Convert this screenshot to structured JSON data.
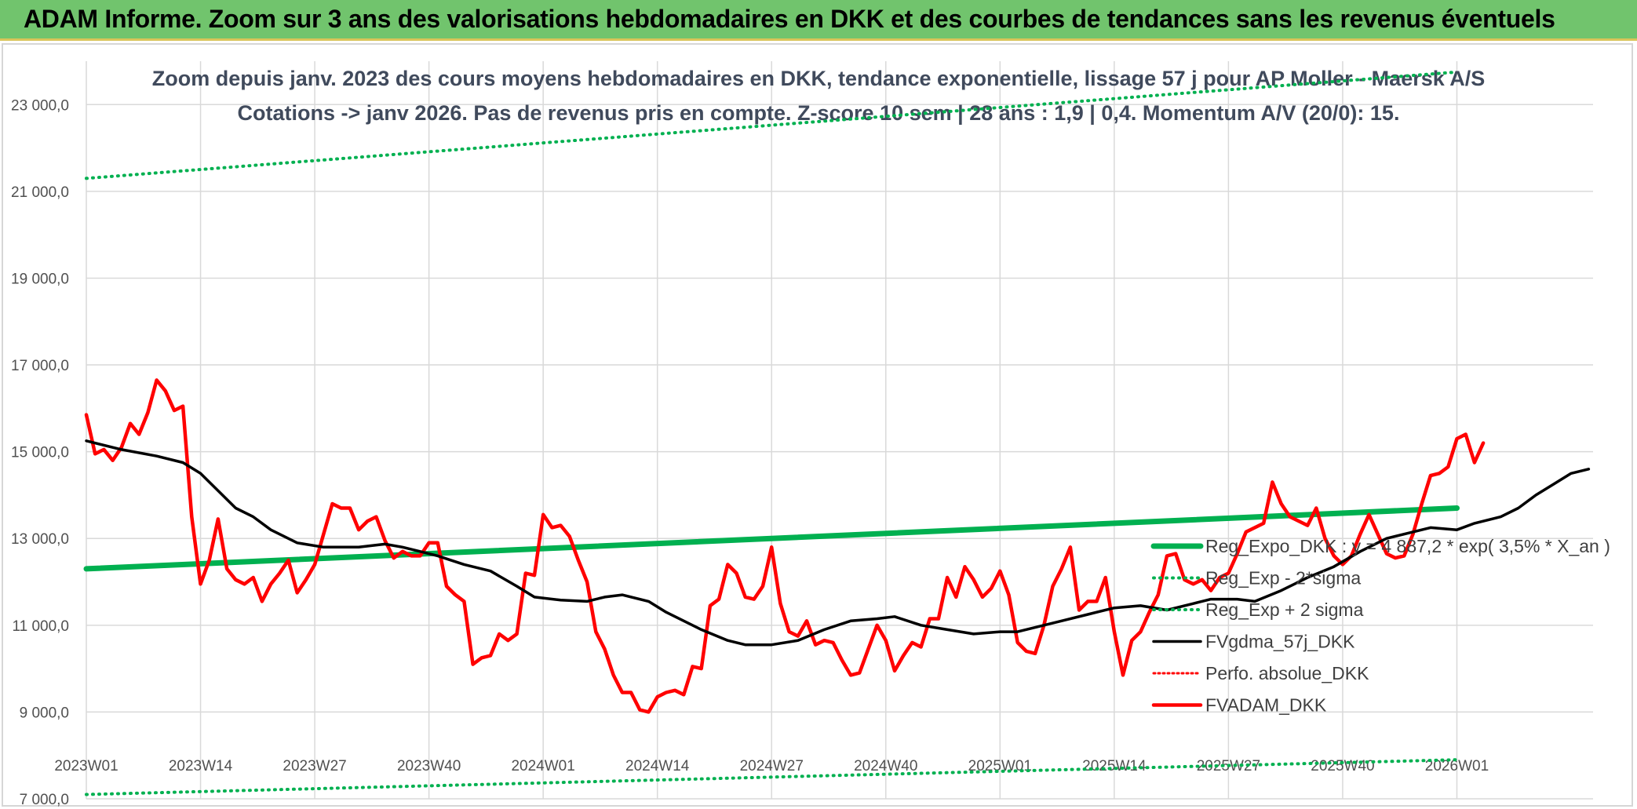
{
  "banner": {
    "title": "ADAM Informe. Zoom sur 3 ans des valorisations hebdomadaires en DKK et des courbes de tendances sans les revenus éventuels"
  },
  "chart_data": {
    "type": "line",
    "title": "Zoom depuis janv. 2023 des cours moyens hebdomadaires en DKK, tendance exponentielle, lissage 57 j pour AP Moller - Maersk A/S",
    "subtitle": "Cotations -> janv 2026. Pas de revenus pris en compte. Z-score 10 sem | 28 ans : 1,9 | 0,4. Momentum A/V (20/0): 15.",
    "x_tick_labels": [
      "2023W01",
      "2023W14",
      "2023W27",
      "2023W40",
      "2024W01",
      "2024W14",
      "2024W27",
      "2024W40",
      "2025W01",
      "2025W14",
      "2025W27",
      "2025W40",
      "2026W01"
    ],
    "y_tick_labels": [
      "7 000,0",
      "9 000,0",
      "11 000,0",
      "13 000,0",
      "15 000,0",
      "17 000,0",
      "19 000,0",
      "21 000,0",
      "23 000,0"
    ],
    "ylim": [
      7000,
      24000
    ],
    "grid": true,
    "legend_position": "right",
    "colors": {
      "reg_exp": "#00b050",
      "reg_bands": "#00b050",
      "fvgdma": "#000000",
      "perfo": "#ff0000",
      "fvadam": "#ff0000"
    },
    "series": [
      {
        "name": "Reg_Expo_DKK : y = 4 887,2 * exp( 3,5% *  X_an )",
        "style": "thick-solid",
        "values": [
          [
            0,
            12300
          ],
          [
            156,
            13700
          ]
        ]
      },
      {
        "name": "Reg_Exp - 2*sigma",
        "style": "dotted",
        "values": [
          [
            0,
            7100
          ],
          [
            156,
            7900
          ]
        ]
      },
      {
        "name": "Reg_Exp + 2 sigma",
        "style": "dotted",
        "values": [
          [
            0,
            21300
          ],
          [
            156,
            23750
          ]
        ]
      },
      {
        "name": "FVgdma_57j_DKK",
        "style": "solid",
        "values": [
          [
            0,
            15250
          ],
          [
            4,
            15050
          ],
          [
            8,
            14900
          ],
          [
            11,
            14750
          ],
          [
            13,
            14500
          ],
          [
            15,
            14100
          ],
          [
            17,
            13700
          ],
          [
            19,
            13500
          ],
          [
            21,
            13200
          ],
          [
            24,
            12900
          ],
          [
            27,
            12800
          ],
          [
            31,
            12800
          ],
          [
            34,
            12870
          ],
          [
            36,
            12800
          ],
          [
            38,
            12700
          ],
          [
            40,
            12600
          ],
          [
            43,
            12400
          ],
          [
            46,
            12250
          ],
          [
            49,
            11900
          ],
          [
            51,
            11650
          ],
          [
            54,
            11580
          ],
          [
            57,
            11550
          ],
          [
            59,
            11650
          ],
          [
            61,
            11700
          ],
          [
            64,
            11550
          ],
          [
            66,
            11300
          ],
          [
            70,
            10900
          ],
          [
            73,
            10650
          ],
          [
            75,
            10550
          ],
          [
            78,
            10550
          ],
          [
            81,
            10650
          ],
          [
            84,
            10900
          ],
          [
            87,
            11100
          ],
          [
            90,
            11150
          ],
          [
            92,
            11200
          ],
          [
            95,
            11000
          ],
          [
            98,
            10900
          ],
          [
            101,
            10800
          ],
          [
            104,
            10850
          ],
          [
            106,
            10850
          ],
          [
            109,
            11000
          ],
          [
            111,
            11100
          ],
          [
            114,
            11250
          ],
          [
            117,
            11400
          ],
          [
            120,
            11450
          ],
          [
            123,
            11350
          ],
          [
            126,
            11500
          ],
          [
            128,
            11600
          ],
          [
            131,
            11600
          ],
          [
            133,
            11550
          ],
          [
            136,
            11800
          ],
          [
            139,
            12100
          ],
          [
            142,
            12350
          ],
          [
            145,
            12700
          ],
          [
            148,
            13000
          ],
          [
            151,
            13150
          ],
          [
            153,
            13250
          ],
          [
            156,
            13200
          ],
          [
            158,
            13350
          ],
          [
            161,
            13500
          ],
          [
            163,
            13700
          ],
          [
            165,
            14000
          ],
          [
            167,
            14250
          ],
          [
            169,
            14500
          ],
          [
            171,
            14600
          ]
        ]
      },
      {
        "name": "Perfo. absolue_DKK",
        "style": "dotted",
        "values": []
      },
      {
        "name": "FVADAM_DKK",
        "style": "thick-solid",
        "values": [
          [
            0,
            15850
          ],
          [
            1,
            14950
          ],
          [
            2,
            15050
          ],
          [
            3,
            14800
          ],
          [
            4,
            15100
          ],
          [
            5,
            15650
          ],
          [
            6,
            15400
          ],
          [
            7,
            15900
          ],
          [
            8,
            16650
          ],
          [
            9,
            16400
          ],
          [
            10,
            15950
          ],
          [
            11,
            16050
          ],
          [
            12,
            13500
          ],
          [
            13,
            11950
          ],
          [
            14,
            12500
          ],
          [
            15,
            13450
          ],
          [
            16,
            12300
          ],
          [
            17,
            12050
          ],
          [
            18,
            11950
          ],
          [
            19,
            12100
          ],
          [
            20,
            11550
          ],
          [
            21,
            11950
          ],
          [
            22,
            12200
          ],
          [
            23,
            12500
          ],
          [
            24,
            11750
          ],
          [
            25,
            12050
          ],
          [
            26,
            12400
          ],
          [
            27,
            13100
          ],
          [
            28,
            13800
          ],
          [
            29,
            13700
          ],
          [
            30,
            13700
          ],
          [
            31,
            13200
          ],
          [
            32,
            13400
          ],
          [
            33,
            13500
          ],
          [
            34,
            12950
          ],
          [
            35,
            12550
          ],
          [
            36,
            12700
          ],
          [
            37,
            12600
          ],
          [
            38,
            12600
          ],
          [
            39,
            12900
          ],
          [
            40,
            12900
          ],
          [
            41,
            11900
          ],
          [
            42,
            11700
          ],
          [
            43,
            11550
          ],
          [
            44,
            10100
          ],
          [
            45,
            10250
          ],
          [
            46,
            10300
          ],
          [
            47,
            10800
          ],
          [
            48,
            10650
          ],
          [
            49,
            10800
          ],
          [
            50,
            12200
          ],
          [
            51,
            12150
          ],
          [
            52,
            13550
          ],
          [
            53,
            13250
          ],
          [
            54,
            13300
          ],
          [
            55,
            13050
          ],
          [
            56,
            12500
          ],
          [
            57,
            12000
          ],
          [
            58,
            10850
          ],
          [
            59,
            10450
          ],
          [
            60,
            9850
          ],
          [
            61,
            9450
          ],
          [
            62,
            9450
          ],
          [
            63,
            9050
          ],
          [
            64,
            9000
          ],
          [
            65,
            9350
          ],
          [
            66,
            9450
          ],
          [
            67,
            9500
          ],
          [
            68,
            9400
          ],
          [
            69,
            10050
          ],
          [
            70,
            10000
          ],
          [
            71,
            11450
          ],
          [
            72,
            11600
          ],
          [
            73,
            12400
          ],
          [
            74,
            12200
          ],
          [
            75,
            11650
          ],
          [
            76,
            11600
          ],
          [
            77,
            11900
          ],
          [
            78,
            12800
          ],
          [
            79,
            11500
          ],
          [
            80,
            10850
          ],
          [
            81,
            10750
          ],
          [
            82,
            11100
          ],
          [
            83,
            10550
          ],
          [
            84,
            10650
          ],
          [
            85,
            10600
          ],
          [
            86,
            10200
          ],
          [
            87,
            9850
          ],
          [
            88,
            9900
          ],
          [
            89,
            10450
          ],
          [
            90,
            11000
          ],
          [
            91,
            10650
          ],
          [
            92,
            9950
          ],
          [
            93,
            10300
          ],
          [
            94,
            10600
          ],
          [
            95,
            10500
          ],
          [
            96,
            11150
          ],
          [
            97,
            11150
          ],
          [
            98,
            12100
          ],
          [
            99,
            11650
          ],
          [
            100,
            12350
          ],
          [
            101,
            12050
          ],
          [
            102,
            11650
          ],
          [
            103,
            11850
          ],
          [
            104,
            12250
          ],
          [
            105,
            11700
          ],
          [
            106,
            10600
          ],
          [
            107,
            10400
          ],
          [
            108,
            10350
          ],
          [
            109,
            11000
          ],
          [
            110,
            11900
          ],
          [
            111,
            12300
          ],
          [
            112,
            12800
          ],
          [
            113,
            11350
          ],
          [
            114,
            11550
          ],
          [
            115,
            11550
          ],
          [
            116,
            12100
          ],
          [
            117,
            10850
          ],
          [
            118,
            9850
          ],
          [
            119,
            10650
          ],
          [
            120,
            10850
          ],
          [
            121,
            11300
          ],
          [
            122,
            11700
          ],
          [
            123,
            12600
          ],
          [
            124,
            12650
          ],
          [
            125,
            12050
          ],
          [
            126,
            11950
          ],
          [
            127,
            12050
          ],
          [
            128,
            11800
          ],
          [
            129,
            12100
          ],
          [
            130,
            12200
          ],
          [
            131,
            12650
          ],
          [
            132,
            13150
          ],
          [
            133,
            13250
          ],
          [
            134,
            13350
          ],
          [
            135,
            14300
          ],
          [
            136,
            13800
          ],
          [
            137,
            13500
          ],
          [
            138,
            13400
          ],
          [
            139,
            13300
          ],
          [
            140,
            13700
          ],
          [
            141,
            13000
          ],
          [
            142,
            12600
          ],
          [
            143,
            12400
          ],
          [
            144,
            12600
          ],
          [
            145,
            13100
          ],
          [
            146,
            13550
          ],
          [
            147,
            13100
          ],
          [
            148,
            12650
          ],
          [
            149,
            12550
          ],
          [
            150,
            12600
          ],
          [
            151,
            13100
          ],
          [
            152,
            13800
          ],
          [
            153,
            14450
          ],
          [
            154,
            14500
          ],
          [
            155,
            14650
          ],
          [
            156,
            15300
          ],
          [
            157,
            15400
          ],
          [
            158,
            14750
          ],
          [
            159,
            15200
          ]
        ]
      }
    ]
  }
}
